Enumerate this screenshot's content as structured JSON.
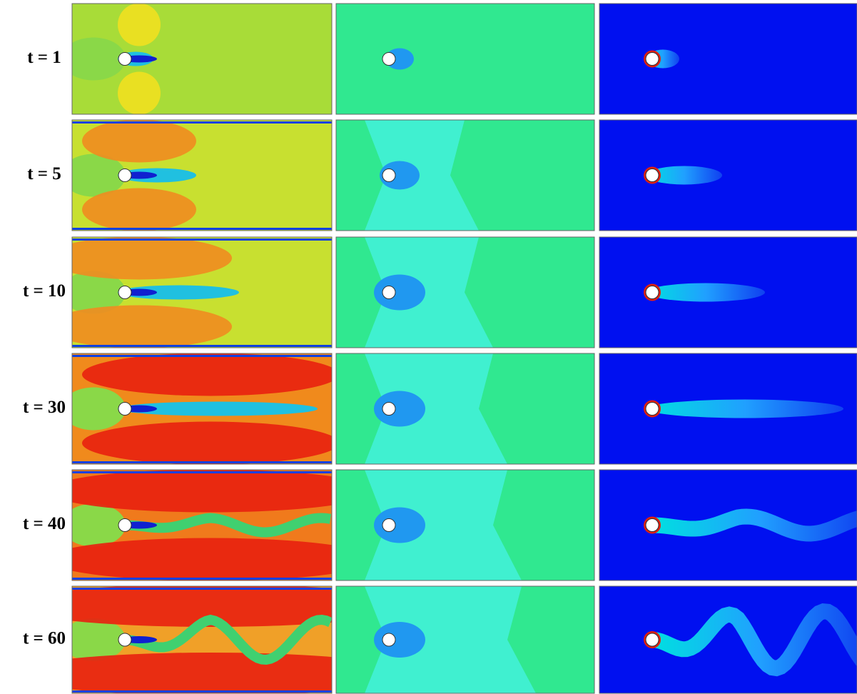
{
  "rows": [
    {
      "label": "t = 1"
    },
    {
      "label": "t = 5"
    },
    {
      "label": "t = 10"
    },
    {
      "label": "t = 30"
    },
    {
      "label": "t = 40"
    },
    {
      "label": "t = 60"
    }
  ]
}
